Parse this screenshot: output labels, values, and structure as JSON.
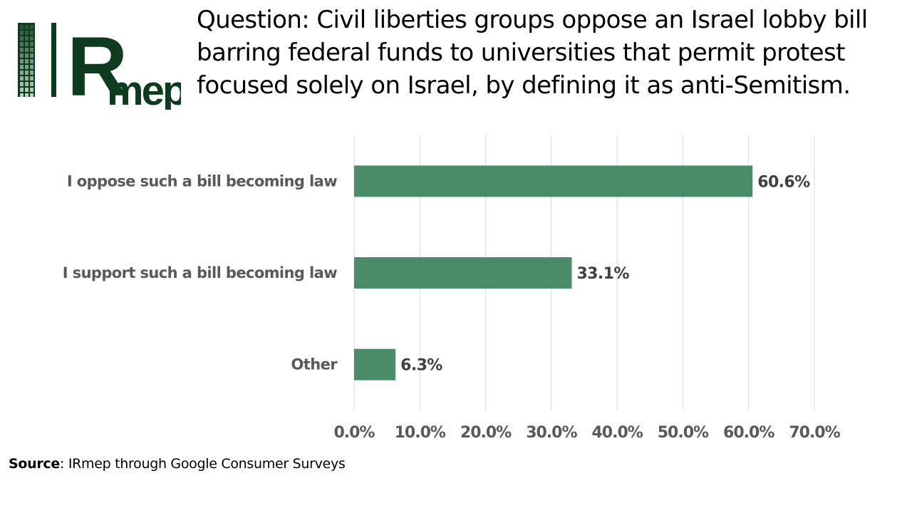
{
  "question": {
    "label": "Question",
    "separator": ":",
    "text": " Civil liberties groups oppose an Israel lobby bill barring federal funds to universities that permit protest focused solely on Israel, by defining it as anti-Semitism."
  },
  "source": {
    "label": "Source",
    "separator": ":",
    "text": " IRmep through Google Consumer Surveys"
  },
  "logo": {
    "text": "IRmep",
    "color": "#0d3b1e"
  },
  "colors": {
    "bar": "#4a8c67",
    "grid": "#d9d9d9",
    "label_text": "#595959",
    "value_text": "#404040"
  },
  "chart_data": {
    "type": "bar",
    "orientation": "horizontal",
    "categories": [
      "I oppose such a bill becoming law",
      "I support such a bill becoming law",
      "Other"
    ],
    "values": [
      60.6,
      33.1,
      6.3
    ],
    "data_labels": [
      "60.6%",
      "33.1%",
      "6.3%"
    ],
    "xlim": [
      0,
      70
    ],
    "x_ticks": [
      0,
      10,
      20,
      30,
      40,
      50,
      60,
      70
    ],
    "x_tick_labels": [
      "0.0%",
      "10.0%",
      "20.0%",
      "30.0%",
      "40.0%",
      "50.0%",
      "60.0%",
      "70.0%"
    ],
    "grid": true,
    "legend": "none"
  }
}
